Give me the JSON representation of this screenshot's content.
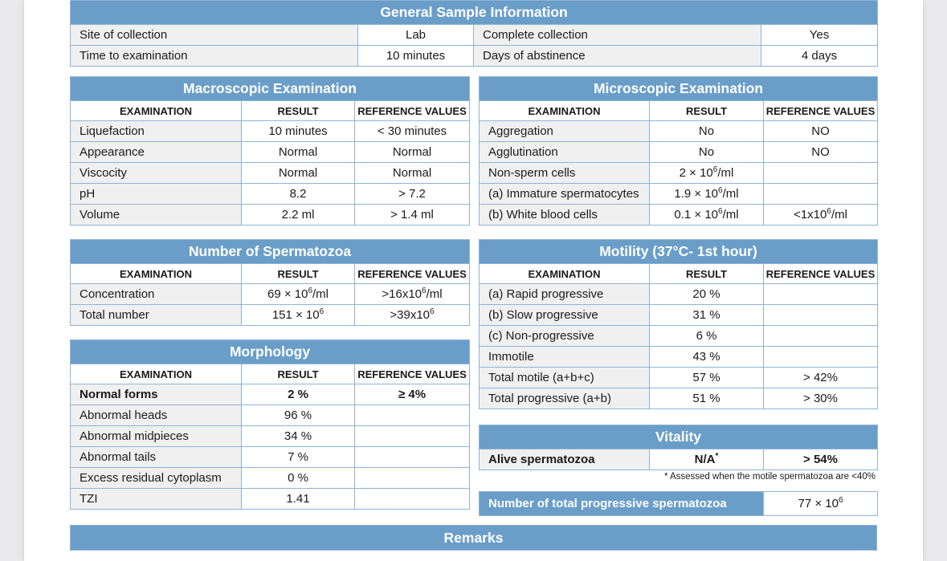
{
  "general": {
    "title": "General Sample Information",
    "rows": [
      [
        "Site of collection",
        "Lab",
        "Complete collection",
        "Yes"
      ],
      [
        "Time to examination",
        "10 minutes",
        "Days of abstinence",
        "4 days"
      ]
    ]
  },
  "col_headers": [
    "EXAMINATION",
    "RESULT",
    "REFERENCE VALUES"
  ],
  "macroscopic": {
    "title": "Macroscopic Examination",
    "rows": [
      [
        "Liquefaction",
        "10 minutes",
        "< 30 minutes"
      ],
      [
        "Appearance",
        "Normal",
        "Normal"
      ],
      [
        "Viscocity",
        "Normal",
        "Normal"
      ],
      [
        "pH",
        "8.2",
        "> 7.2"
      ],
      [
        "Volume",
        "2.2 ml",
        "> 1.4 ml"
      ]
    ]
  },
  "microscopic": {
    "title": "Microscopic Examination",
    "rows": [
      [
        "Aggregation",
        "No",
        "NO"
      ],
      [
        "Agglutination",
        "No",
        "NO"
      ],
      [
        "Non-sperm cells",
        "2 × 10^6/ml",
        ""
      ],
      [
        "(a) Immature spermatocytes",
        "1.9 × 10^6/ml",
        ""
      ],
      [
        "(b) White blood cells",
        "0.1 × 10^6/ml",
        "<1x10^6/ml"
      ]
    ]
  },
  "spermatozoa": {
    "title": "Number of Spermatozoa",
    "rows": [
      [
        "Concentration",
        "69 × 10^6/ml",
        ">16x10^6/ml"
      ],
      [
        "Total number",
        "151 × 10^6",
        ">39x10^6"
      ]
    ]
  },
  "morphology": {
    "title": "Morphology",
    "rows": [
      [
        "Normal forms",
        "2 %",
        "≥ 4%"
      ],
      [
        "Abnormal heads",
        "96 %",
        ""
      ],
      [
        "Abnormal midpieces",
        "34 %",
        ""
      ],
      [
        "Abnormal tails",
        "7 %",
        ""
      ],
      [
        "Excess residual cytoplasm",
        "0 %",
        ""
      ],
      [
        "TZI",
        "1.41",
        ""
      ]
    ]
  },
  "motility": {
    "title": "Motility (37°C- 1st hour)",
    "rows": [
      [
        "(a) Rapid progressive",
        "20 %",
        ""
      ],
      [
        "(b) Slow progressive",
        "31 %",
        ""
      ],
      [
        "(c) Non-progressive",
        "6 %",
        ""
      ],
      [
        "Immotile",
        "43 %",
        ""
      ],
      [
        "Total motile (a+b+c)",
        "57 %",
        "> 42%"
      ],
      [
        "Total progressive (a+b)",
        "51 %",
        "> 30%"
      ]
    ]
  },
  "vitality": {
    "title": "Vitality",
    "row": [
      "Alive spermatozoa",
      "N/A*",
      "> 54%"
    ],
    "note": "* Assessed when the motile spermatozoa are <40%"
  },
  "total_progressive": {
    "label": "Number of total progressive spermatozoa",
    "value": "77 × 10^6"
  },
  "remarks": {
    "title": "Remarks"
  }
}
